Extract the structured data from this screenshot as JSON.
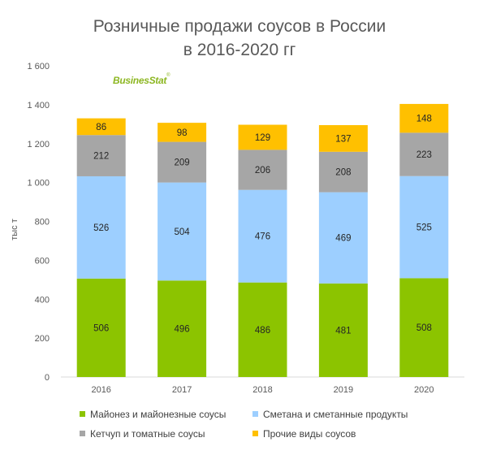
{
  "chart_data": {
    "type": "bar",
    "stacked": true,
    "title_lines": [
      "Розничные продажи  соусов в России",
      "в 2016-2020 гг"
    ],
    "watermark": "BusinesStat",
    "watermark_mark": "®",
    "ylabel": "тыс т",
    "ylim": [
      0,
      1600
    ],
    "yticks": [
      0,
      200,
      400,
      600,
      800,
      1000,
      1200,
      1400,
      1600
    ],
    "ytick_labels": [
      "0",
      "200",
      "400",
      "600",
      "800",
      "1 000",
      "1 200",
      "1 400",
      "1 600"
    ],
    "categories": [
      "2016",
      "2017",
      "2018",
      "2019",
      "2020"
    ],
    "series": [
      {
        "name": "Майонез и майонезные соусы",
        "color": "#8cc400",
        "values": [
          506,
          496,
          486,
          481,
          508
        ]
      },
      {
        "name": "Сметана и сметанные продукты",
        "color": "#9dcfff",
        "values": [
          526,
          504,
          476,
          469,
          525
        ]
      },
      {
        "name": "Кетчуп и томатные соусы",
        "color": "#a6a6a6",
        "values": [
          212,
          209,
          206,
          208,
          223
        ]
      },
      {
        "name": "Прочие виды соусов",
        "color": "#ffc000",
        "values": [
          86,
          98,
          129,
          137,
          148
        ]
      }
    ],
    "grid": false,
    "legend_position": "bottom"
  }
}
